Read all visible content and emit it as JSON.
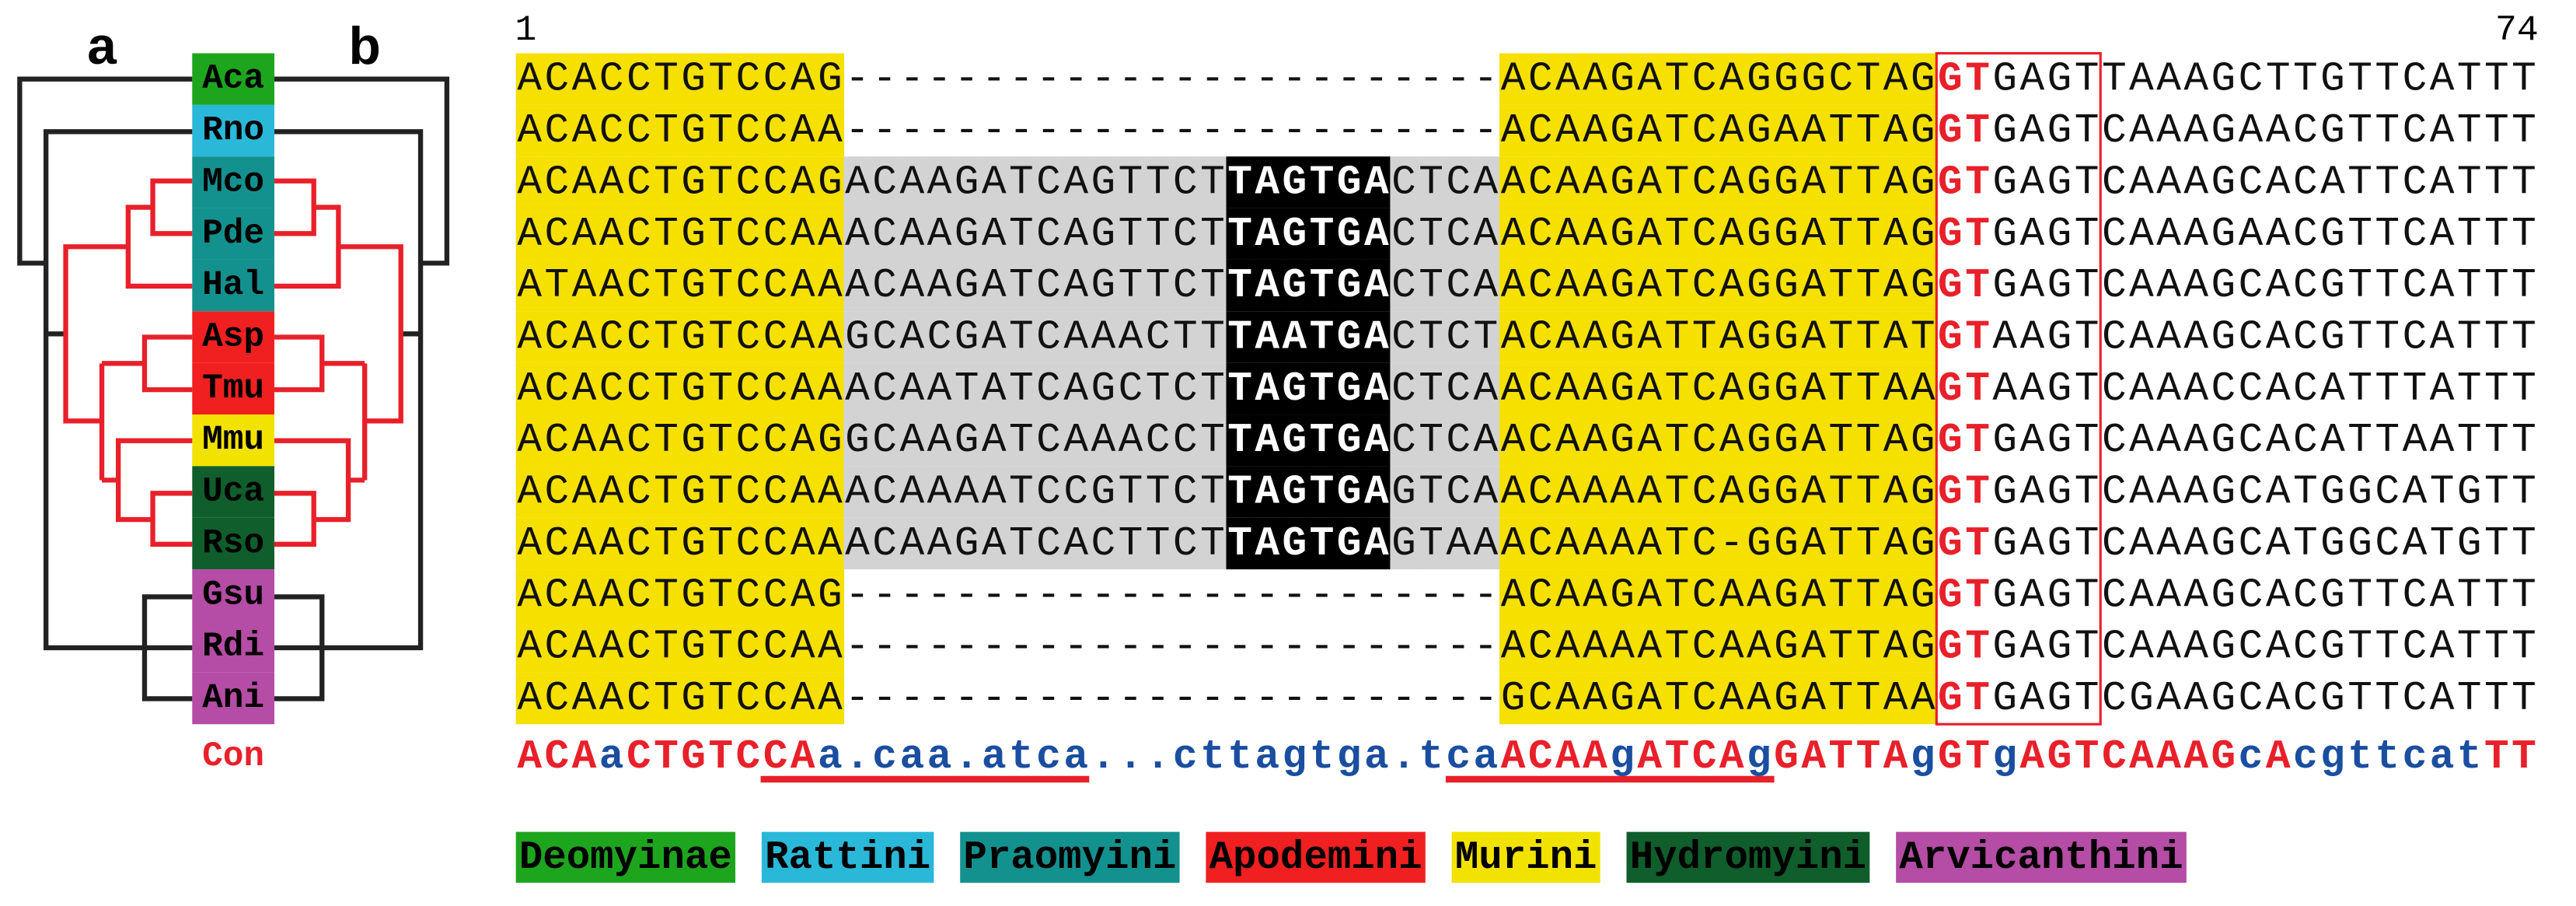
{
  "panel_labels": [
    "a",
    "b"
  ],
  "ruler": {
    "start": 1,
    "end": 74
  },
  "alignment": {
    "rows": [
      {
        "taxon": "Aca",
        "color": "#1ea51e",
        "sequence": "ACACCTGTCCAG------------------------ACAAGATCAGGGCTAGGTGAGTTAAAGCTTGTTCATTT"
      },
      {
        "taxon": "Rno",
        "color": "#2ab8d8",
        "sequence": "ACACCTGTCCAA------------------------ACAAGATCAGAATTAGGTGAGTCAAAGAACGTTCATTT"
      },
      {
        "taxon": "Mco",
        "color": "#13918f",
        "sequence": "ACAACTGTCCAGACAAGATCAGTTCTTAGTGACTCAACAAGATCAGGATTAGGTGAGTCAAAGCACATTCATTT"
      },
      {
        "taxon": "Pde",
        "color": "#13918f",
        "sequence": "ACAACTGTCCAAACAAGATCAGTTCTTAGTGACTCAACAAGATCAGGATTAGGTGAGTCAAAGAACGTTCATTT"
      },
      {
        "taxon": "Hal",
        "color": "#13918f",
        "sequence": "ATAACTGTCCAAACAAGATCAGTTCTTAGTGACTCAACAAGATCAGGATTAGGTGAGTCAAAGCACGTTCATTT"
      },
      {
        "taxon": "Asp",
        "color": "#f02020",
        "sequence": "ACACCTGTCCAAGCACGATCAAACTTTAATGACTCTACAAGATTAGGATTATGTAAGTCAAAGCACGTTCATTT"
      },
      {
        "taxon": "Tmu",
        "color": "#f02020",
        "sequence": "ACACCTGTCCAAACAATATCAGCTCTTAGTGACTCAACAAGATCAGGATTAAGTAAGTCAAACCACATTTATTT"
      },
      {
        "taxon": "Mmu",
        "color": "#f2e200",
        "sequence": "ACAACTGTCCAGGCAAGATCAAACCTTAGTGACTCAACAAGATCAGGATTAGGTGAGTCAAAGCACATTAATTT"
      },
      {
        "taxon": "Uca",
        "color": "#0f5e2c",
        "sequence": "ACAACTGTCCAAACAAAATCCGTTCTTAGTGAGTCAACAAAATCAGGATTAGGTGAGTCAAAGCATGGCATGTT"
      },
      {
        "taxon": "Rso",
        "color": "#0f5e2c",
        "sequence": "ACAACTGTCCAAACAAGATCACTTCTTAGTGAGTAAACAAAATC-GGATTAGGTGAGTCAAAGCATGGCATGTT"
      },
      {
        "taxon": "Gsu",
        "color": "#b54ca5",
        "sequence": "ACAACTGTCCAG------------------------ACAAGATCAAGATTAGGTGAGTCAAAGCACGTTCATTT"
      },
      {
        "taxon": "Rdi",
        "color": "#b54ca5",
        "sequence": "ACAACTGTCCAA------------------------ACAAAATCAAGATTAGGTGAGTCAAAGCACGTTCATTT"
      },
      {
        "taxon": "Ani",
        "color": "#b54ca5",
        "sequence": "ACAACTGTCCAA------------------------GCAAGATCAAGATTAAGTGAGTCGAAGCACGTTCATTT"
      }
    ],
    "consensus": {
      "label": "Con",
      "sequence": "ACAaCTGTCCAa.caa.atca...cttagtga.tcaACAAgATCAgGATTAgGTgAGTCAAAGcAcgttcatTT"
    }
  },
  "legend": [
    {
      "label": "Deomyinae",
      "color": "#1ea51e"
    },
    {
      "label": "Rattini",
      "color": "#2ab8d8"
    },
    {
      "label": "Praomyini",
      "color": "#13918f"
    },
    {
      "label": "Apodemini",
      "color": "#f02020"
    },
    {
      "label": "Murini",
      "color": "#f2e200"
    },
    {
      "label": "Hydromyini",
      "color": "#0f5e2c"
    },
    {
      "label": "Arvicanthini",
      "color": "#b54ca5"
    }
  ]
}
